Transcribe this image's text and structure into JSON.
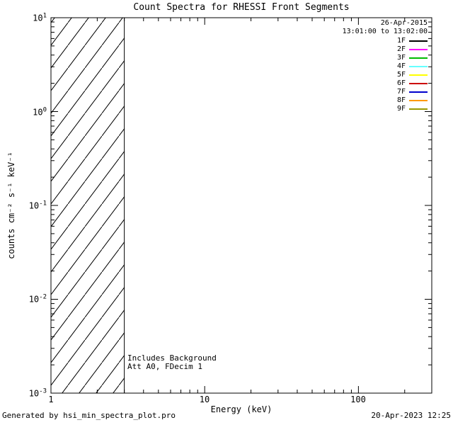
{
  "chart_data": {
    "type": "line",
    "title": "Count Spectra for RHESSI Front Segments",
    "xlabel": "Energy (keV)",
    "ylabel": "counts cm⁻² s⁻¹ keV⁻¹",
    "xscale": "log",
    "yscale": "log",
    "xlim": [
      1,
      300
    ],
    "ylim": [
      0.001,
      10
    ],
    "grid": false,
    "x_ticks": [
      "1",
      "10",
      "100"
    ],
    "y_ticks": [
      {
        "base": "10",
        "exp": "1"
      },
      {
        "base": "10",
        "exp": "0"
      },
      {
        "base": "10",
        "exp": "-1"
      },
      {
        "base": "10",
        "exp": "-2"
      },
      {
        "base": "10",
        "exp": "-3"
      }
    ],
    "series": [],
    "hatch_region": {
      "x_start": 1,
      "x_end": 3
    },
    "legend_position": "upper right",
    "legend": [
      {
        "label": "1F",
        "color": "#000000"
      },
      {
        "label": "2F",
        "color": "#ff00ff"
      },
      {
        "label": "3F",
        "color": "#00bb00"
      },
      {
        "label": "4F",
        "color": "#66ffff"
      },
      {
        "label": "5F",
        "color": "#ffff00"
      },
      {
        "label": "6F",
        "color": "#cc0000"
      },
      {
        "label": "7F",
        "color": "#0000cc"
      },
      {
        "label": "8F",
        "color": "#ff9900"
      },
      {
        "label": "9F",
        "color": "#999900"
      }
    ],
    "inplot_text": {
      "date": "26-Apr-2015",
      "time_range": "13:01:00 to 13:02:00",
      "note_background": "Includes Background",
      "note_attenuator": "Att A0, FDecim 1"
    }
  },
  "footer": {
    "generated_by": "Generated by hsi_min_spectra_plot.pro",
    "timestamp": "20-Apr-2023 12:25"
  }
}
